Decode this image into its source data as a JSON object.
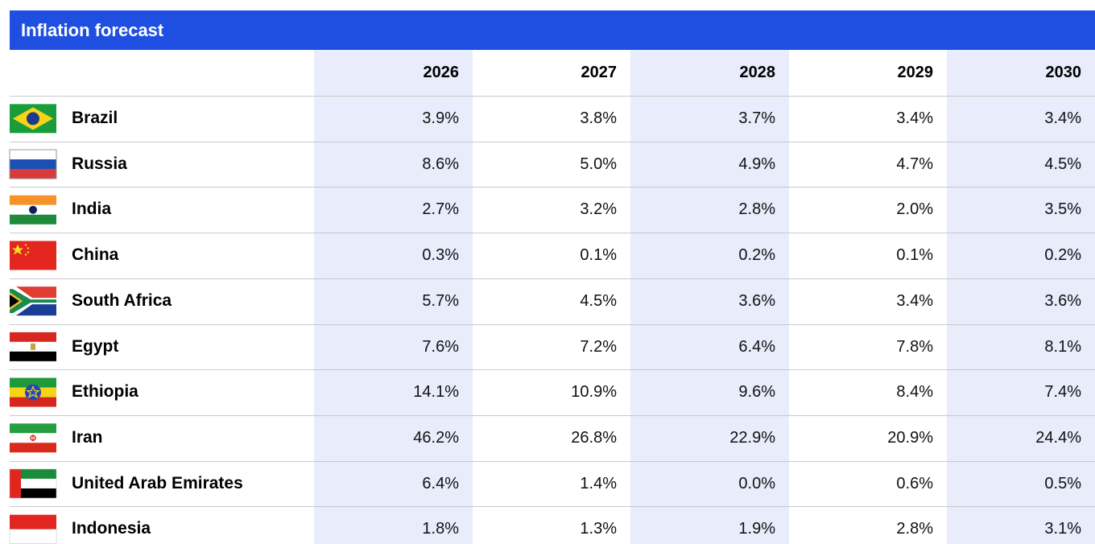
{
  "table": {
    "title": "Inflation forecast",
    "columns": [
      "2026",
      "2027",
      "2028",
      "2029",
      "2030"
    ],
    "rows": [
      {
        "country": "Brazil",
        "values": [
          "3.9%",
          "3.8%",
          "3.7%",
          "3.4%",
          "3.4%"
        ]
      },
      {
        "country": "Russia",
        "values": [
          "8.6%",
          "5.0%",
          "4.9%",
          "4.7%",
          "4.5%"
        ]
      },
      {
        "country": "India",
        "values": [
          "2.7%",
          "3.2%",
          "2.8%",
          "2.0%",
          "3.5%"
        ]
      },
      {
        "country": "China",
        "values": [
          "0.3%",
          "0.1%",
          "0.2%",
          "0.1%",
          "0.2%"
        ]
      },
      {
        "country": "South Africa",
        "values": [
          "5.7%",
          "4.5%",
          "3.6%",
          "3.4%",
          "3.6%"
        ]
      },
      {
        "country": "Egypt",
        "values": [
          "7.6%",
          "7.2%",
          "6.4%",
          "7.8%",
          "8.1%"
        ]
      },
      {
        "country": "Ethiopia",
        "values": [
          "14.1%",
          "10.9%",
          "9.6%",
          "8.4%",
          "7.4%"
        ]
      },
      {
        "country": "Iran",
        "values": [
          "46.2%",
          "26.8%",
          "22.9%",
          "20.9%",
          "24.4%"
        ]
      },
      {
        "country": "United Arab Emirates",
        "values": [
          "6.4%",
          "1.4%",
          "0.0%",
          "0.6%",
          "0.5%"
        ]
      },
      {
        "country": "Indonesia",
        "values": [
          "1.8%",
          "1.3%",
          "1.9%",
          "2.8%",
          "3.1%"
        ]
      }
    ]
  }
}
